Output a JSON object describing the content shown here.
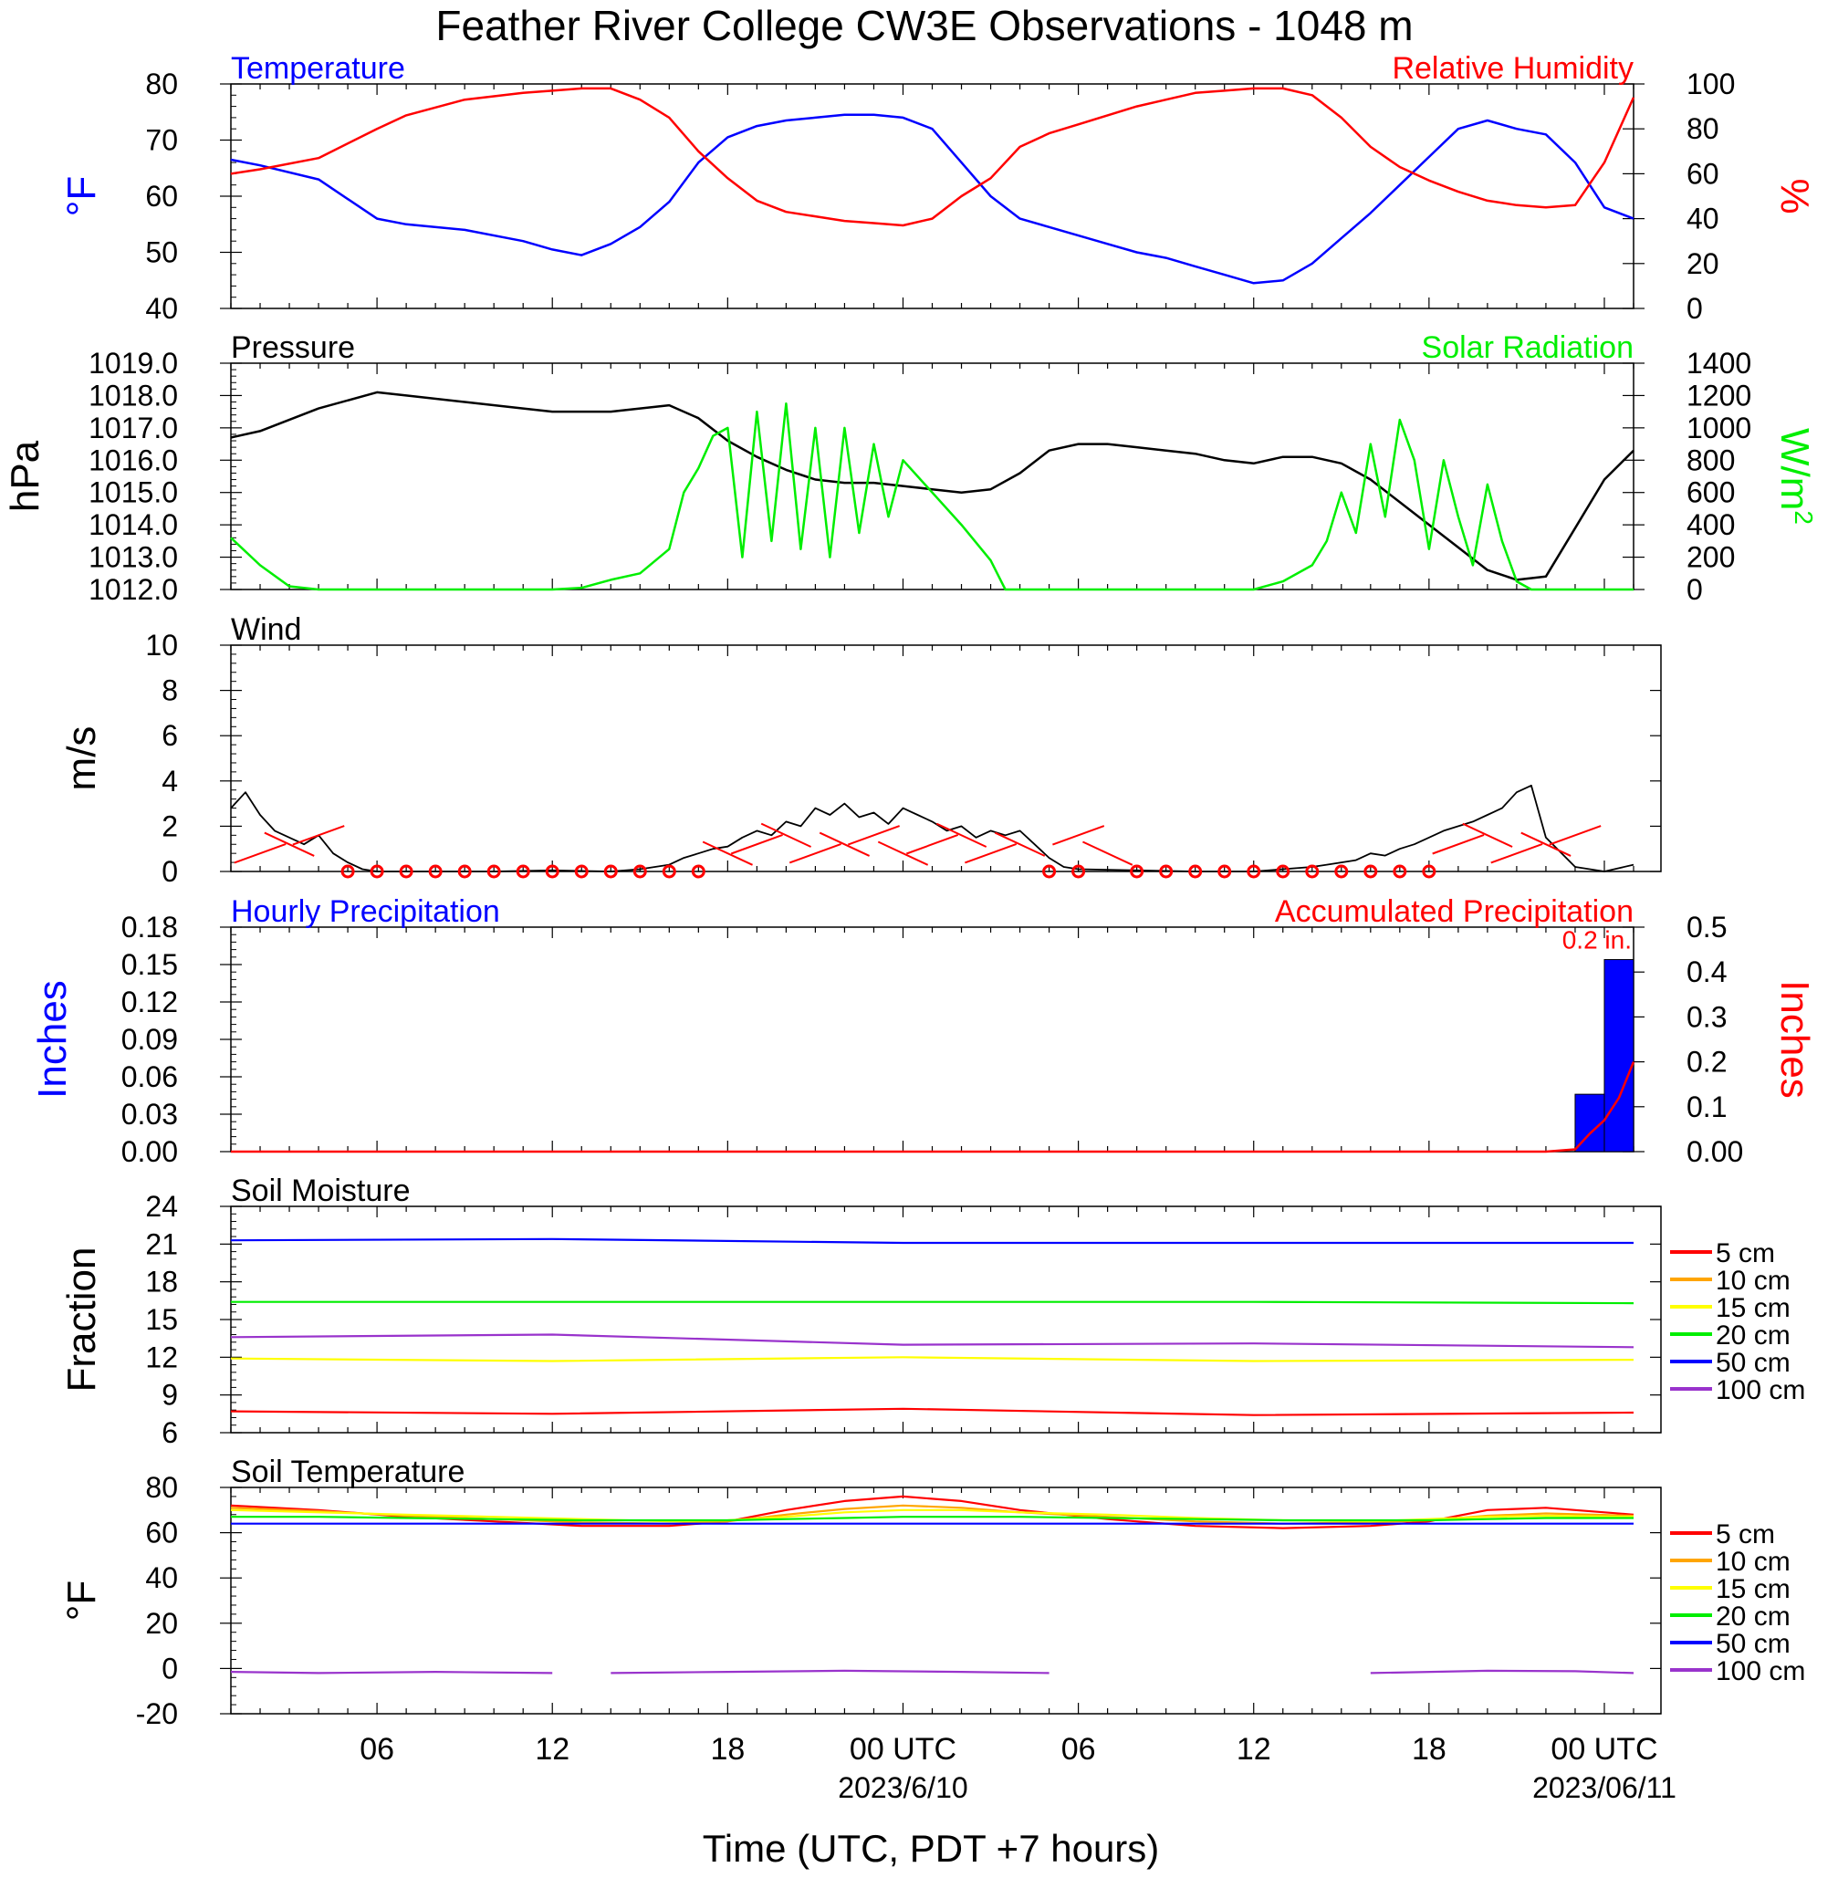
{
  "title": "Feather River College CW3E Observations - 1048 m",
  "x_axis": {
    "tick_labels": [
      "06",
      "12",
      "18",
      "00 UTC",
      "06",
      "12",
      "18",
      "00 UTC"
    ],
    "date_labels": [
      "2023/6/10",
      "2023/06/11"
    ],
    "label": "Time (UTC, PDT +7 hours)"
  },
  "chart_data": [
    {
      "id": "temp_rh",
      "type": "line",
      "left_title": "Temperature",
      "right_title": "Relative Humidity",
      "ylabel_left": "°F",
      "ylabel_right": "%",
      "ylim_left": [
        40,
        80
      ],
      "ylim_right": [
        0,
        100
      ],
      "yticks_left": [
        "40",
        "50",
        "60",
        "70",
        "80"
      ],
      "yticks_right": [
        "0",
        "20",
        "40",
        "60",
        "80",
        "100"
      ],
      "x_hours": [
        1,
        2,
        4,
        6,
        7,
        9,
        11,
        12,
        13,
        14,
        15,
        16,
        17,
        18,
        19,
        20,
        21,
        22,
        23,
        24,
        25,
        26,
        27,
        28,
        29,
        30,
        31,
        32,
        33,
        34,
        35,
        36,
        37,
        38,
        39,
        40,
        41,
        42,
        43,
        44,
        45,
        46,
        47,
        48,
        49
      ],
      "series": [
        {
          "name": "Temperature",
          "axis": "left",
          "color": "#0000ff",
          "values": [
            66.5,
            65.5,
            63,
            56,
            55,
            54,
            52,
            50.5,
            49.5,
            51.5,
            54.5,
            59,
            66,
            70.5,
            72.5,
            73.5,
            74,
            74.5,
            74.5,
            74,
            72,
            66,
            60,
            56,
            54.5,
            53,
            51.5,
            50,
            49,
            47.5,
            46,
            44.5,
            45,
            48,
            52.5,
            57,
            62,
            67,
            72,
            73.5,
            72,
            71,
            66,
            58,
            56
          ]
        },
        {
          "name": "Relative Humidity",
          "axis": "right",
          "color": "#ff0000",
          "values": [
            60,
            62,
            67,
            80,
            86,
            93,
            96,
            97,
            98,
            98,
            93,
            85,
            70,
            58,
            48,
            43,
            41,
            39,
            38,
            37,
            40,
            50,
            58,
            72,
            78,
            82,
            86,
            90,
            93,
            96,
            97,
            98,
            98,
            95,
            85,
            72,
            63,
            57,
            52,
            48,
            46,
            45,
            46,
            65,
            94
          ]
        }
      ]
    },
    {
      "id": "pressure_solar",
      "type": "line",
      "left_title": "Pressure",
      "right_title": "Solar Radiation",
      "ylabel_left": "hPa",
      "ylabel_right": "W/m",
      "ylabel_right_sup": "2",
      "ylim_left": [
        1012,
        1019
      ],
      "ylim_right": [
        0,
        1400
      ],
      "yticks_left": [
        "1012.0",
        "1013.0",
        "1014.0",
        "1015.0",
        "1016.0",
        "1017.0",
        "1018.0",
        "1019.0"
      ],
      "yticks_right": [
        "0",
        "200",
        "400",
        "600",
        "800",
        "1000",
        "1200",
        "1400"
      ],
      "series": [
        {
          "name": "Pressure",
          "axis": "left",
          "color": "#000000",
          "x_hours": [
            1,
            2,
            4,
            6,
            7,
            9,
            11,
            12,
            13,
            14,
            15,
            16,
            17,
            18,
            19,
            20,
            21,
            22,
            23,
            24,
            25,
            26,
            27,
            28,
            29,
            30,
            31,
            32,
            33,
            34,
            35,
            36,
            37,
            38,
            39,
            40,
            41,
            42,
            43,
            44,
            45,
            46,
            47,
            48,
            49
          ],
          "values": [
            1016.7,
            1016.9,
            1017.6,
            1018.1,
            1018.0,
            1017.8,
            1017.6,
            1017.5,
            1017.5,
            1017.5,
            1017.6,
            1017.7,
            1017.3,
            1016.6,
            1016.1,
            1015.7,
            1015.4,
            1015.3,
            1015.3,
            1015.2,
            1015.1,
            1015.0,
            1015.1,
            1015.6,
            1016.3,
            1016.5,
            1016.5,
            1016.4,
            1016.3,
            1016.2,
            1016.0,
            1015.9,
            1016.1,
            1016.1,
            1015.9,
            1015.4,
            1014.7,
            1014.0,
            1013.3,
            1012.6,
            1012.3,
            1012.4,
            1013.9,
            1015.4,
            1016.3
          ]
        },
        {
          "name": "Solar Radiation",
          "axis": "right",
          "color": "#00ee00",
          "x_hours": [
            1,
            2,
            3,
            4,
            6,
            8,
            10,
            12,
            13,
            14,
            15,
            16,
            16.5,
            17,
            17.5,
            18,
            18.5,
            19,
            19.5,
            20,
            20.5,
            21,
            21.5,
            22,
            22.5,
            23,
            23.5,
            24,
            25,
            26,
            27,
            27.5,
            28,
            30,
            32,
            34,
            36,
            37,
            38,
            38.5,
            39,
            39.5,
            40,
            40.5,
            41,
            41.5,
            42,
            42.5,
            43,
            43.5,
            44,
            44.5,
            45,
            45.5,
            46,
            47,
            48,
            49
          ],
          "values": [
            320,
            150,
            20,
            0,
            0,
            0,
            0,
            0,
            10,
            60,
            100,
            250,
            600,
            750,
            950,
            1000,
            200,
            1100,
            300,
            1150,
            250,
            1000,
            200,
            1000,
            350,
            900,
            450,
            800,
            600,
            400,
            180,
            0,
            0,
            0,
            0,
            0,
            0,
            50,
            150,
            300,
            600,
            350,
            900,
            450,
            1050,
            800,
            250,
            800,
            450,
            150,
            650,
            300,
            50,
            0,
            0,
            0,
            0,
            0
          ]
        }
      ]
    },
    {
      "id": "wind",
      "type": "line",
      "left_title": "Wind",
      "ylabel_left": "m/s",
      "ylim_left": [
        0,
        10
      ],
      "yticks_left": [
        "0",
        "2",
        "4",
        "6",
        "8",
        "10"
      ],
      "series": [
        {
          "name": "Wind",
          "color": "#000000",
          "x_hours": [
            1,
            1.5,
            2,
            2.5,
            3,
            3.5,
            4,
            4.5,
            5,
            5.5,
            6,
            8,
            10,
            12,
            14,
            15,
            16,
            16.5,
            17,
            17.5,
            18,
            18.5,
            19,
            19.5,
            20,
            20.5,
            21,
            21.5,
            22,
            22.5,
            23,
            23.5,
            24,
            24.5,
            25,
            25.5,
            26,
            26.5,
            27,
            27.5,
            28,
            28.5,
            29,
            29.5,
            30,
            32,
            34,
            36,
            38,
            38.5,
            39,
            39.5,
            40,
            40.5,
            41,
            41.5,
            42,
            42.5,
            43,
            43.5,
            44,
            44.5,
            45,
            45.5,
            46,
            47,
            48,
            49
          ],
          "values": [
            2.8,
            3.5,
            2.5,
            1.8,
            1.5,
            1.2,
            1.6,
            0.8,
            0.4,
            0.1,
            0,
            0,
            0,
            0.05,
            0,
            0.1,
            0.3,
            0.6,
            0.8,
            1.0,
            1.1,
            1.5,
            1.8,
            1.6,
            2.2,
            2.0,
            2.8,
            2.5,
            3.0,
            2.4,
            2.6,
            2.1,
            2.8,
            2.5,
            2.2,
            1.8,
            2.0,
            1.5,
            1.8,
            1.6,
            1.8,
            1.2,
            0.6,
            0.2,
            0.1,
            0.05,
            0,
            0,
            0.2,
            0.3,
            0.4,
            0.5,
            0.8,
            0.7,
            1.0,
            1.2,
            1.5,
            1.8,
            2.0,
            2.2,
            2.5,
            2.8,
            3.5,
            3.8,
            1.5,
            0.2,
            0,
            0.3
          ]
        }
      ],
      "calm_circles_hours": [
        5,
        6,
        7,
        8,
        9,
        10,
        11,
        12,
        13,
        14,
        15,
        16,
        17,
        29,
        30,
        32,
        33,
        34,
        35,
        36,
        37,
        38,
        39,
        40,
        41,
        42
      ],
      "barb_hours": [
        2,
        3,
        4,
        18,
        19,
        20,
        21,
        22,
        23,
        24,
        25,
        26,
        27,
        28,
        30,
        31,
        43,
        44,
        45,
        46,
        47
      ]
    },
    {
      "id": "precip",
      "type": "bar",
      "left_title": "Hourly Precipitation",
      "right_title": "Accumulated Precipitation",
      "ylabel_left": "Inches",
      "ylabel_right": "Inches",
      "ylim_left": [
        0,
        0.18
      ],
      "ylim_right": [
        0,
        0.5
      ],
      "yticks_left": [
        "0.00",
        "0.03",
        "0.06",
        "0.09",
        "0.12",
        "0.15",
        "0.18"
      ],
      "yticks_right": [
        "0.00",
        "0.1",
        "0.2",
        "0.3",
        "0.4",
        "0.5"
      ],
      "annotation": "0.2 in.",
      "bars": [
        {
          "start_hour": 47,
          "end_hour": 48,
          "value": 0.046,
          "color": "#0000ff"
        },
        {
          "start_hour": 48,
          "end_hour": 49,
          "value": 0.154,
          "color": "#0000ff"
        }
      ],
      "accumulated": {
        "color": "#ff0000",
        "x_hours": [
          1,
          46,
          47,
          47.5,
          48,
          48.5,
          49
        ],
        "values": [
          0,
          0,
          0.005,
          0.04,
          0.07,
          0.12,
          0.2
        ]
      }
    },
    {
      "id": "soil_moisture",
      "type": "line",
      "left_title": "Soil Moisture",
      "ylabel_left": "Fraction",
      "ylim_left": [
        6,
        24
      ],
      "yticks_left": [
        "6",
        "9",
        "12",
        "15",
        "18",
        "21",
        "24"
      ],
      "x_hours": [
        1,
        12,
        24,
        36,
        49
      ],
      "series": [
        {
          "name": "5 cm",
          "color": "#ff0000",
          "values": [
            7.7,
            7.5,
            7.9,
            7.4,
            7.6
          ]
        },
        {
          "name": "10 cm",
          "color": "#ffa500",
          "values": [
            null,
            null,
            null,
            null,
            null
          ]
        },
        {
          "name": "15 cm",
          "color": "#ffff00",
          "values": [
            11.9,
            11.7,
            12.0,
            11.7,
            11.8
          ]
        },
        {
          "name": "20 cm",
          "color": "#00ee00",
          "values": [
            16.4,
            16.4,
            16.4,
            16.4,
            16.3
          ]
        },
        {
          "name": "50 cm",
          "color": "#0000ff",
          "values": [
            21.3,
            21.4,
            21.1,
            21.1,
            21.1
          ]
        },
        {
          "name": "100 cm",
          "color": "#9933cc",
          "values": [
            13.6,
            13.8,
            13.0,
            13.1,
            12.8
          ]
        }
      ]
    },
    {
      "id": "soil_temperature",
      "type": "line",
      "left_title": "Soil Temperature",
      "ylabel_left": "°F",
      "ylim_left": [
        -20,
        80
      ],
      "yticks_left": [
        "-20",
        "0",
        "20",
        "40",
        "60",
        "80"
      ],
      "x_hours": [
        1,
        4,
        7,
        10,
        13,
        16,
        18,
        20,
        22,
        24,
        26,
        28,
        31,
        34,
        37,
        40,
        42,
        44,
        46,
        49
      ],
      "series": [
        {
          "name": "5 cm",
          "color": "#ff0000",
          "values": [
            72,
            70,
            67,
            65,
            63,
            63,
            65,
            70,
            74,
            76,
            74,
            70,
            66,
            63,
            62,
            63,
            65,
            70,
            71,
            68
          ]
        },
        {
          "name": "10 cm",
          "color": "#ffa500",
          "values": [
            71,
            69.5,
            67.5,
            66,
            64.5,
            64,
            65,
            68,
            70.5,
            72,
            71,
            69,
            67,
            65,
            64,
            64.5,
            65.5,
            67.5,
            68.5,
            67.5
          ]
        },
        {
          "name": "15 cm",
          "color": "#ffff00",
          "values": [
            70,
            69,
            68,
            67,
            66,
            65,
            65.5,
            67,
            69,
            70,
            70,
            69,
            68,
            66.5,
            65.5,
            65,
            66,
            67,
            67.5,
            67
          ]
        },
        {
          "name": "20 cm",
          "color": "#00ee00",
          "values": [
            67,
            67,
            66.5,
            66,
            65.5,
            65.5,
            65.5,
            66,
            66.5,
            67,
            67,
            67,
            66.5,
            66,
            65.5,
            65.5,
            65.5,
            66,
            66.5,
            66.5
          ]
        },
        {
          "name": "50 cm",
          "color": "#0000ff",
          "values": [
            64,
            64,
            64,
            64,
            64,
            64,
            64,
            64,
            64,
            64,
            64,
            64,
            64,
            64,
            64,
            64,
            64,
            64,
            64,
            64
          ]
        },
        {
          "name": "100 cm",
          "color": "#9933cc",
          "segments": [
            {
              "x_hours": [
                1,
                4,
                8,
                12
              ],
              "values": [
                -1.5,
                -2,
                -1.5,
                -2
              ]
            },
            {
              "x_hours": [
                14,
                18,
                22,
                26,
                29
              ],
              "values": [
                -2,
                -1.5,
                -1,
                -1.5,
                -2
              ]
            },
            {
              "x_hours": [
                40,
                44,
                47,
                49
              ],
              "values": [
                -2,
                -1,
                -1.2,
                -2
              ]
            }
          ]
        }
      ]
    }
  ],
  "legend": {
    "labels": [
      "5 cm",
      "10 cm",
      "15 cm",
      "20 cm",
      "50 cm",
      "100 cm"
    ],
    "colors": [
      "#ff0000",
      "#ffa500",
      "#ffff00",
      "#00ee00",
      "#0000ff",
      "#9933cc"
    ]
  }
}
